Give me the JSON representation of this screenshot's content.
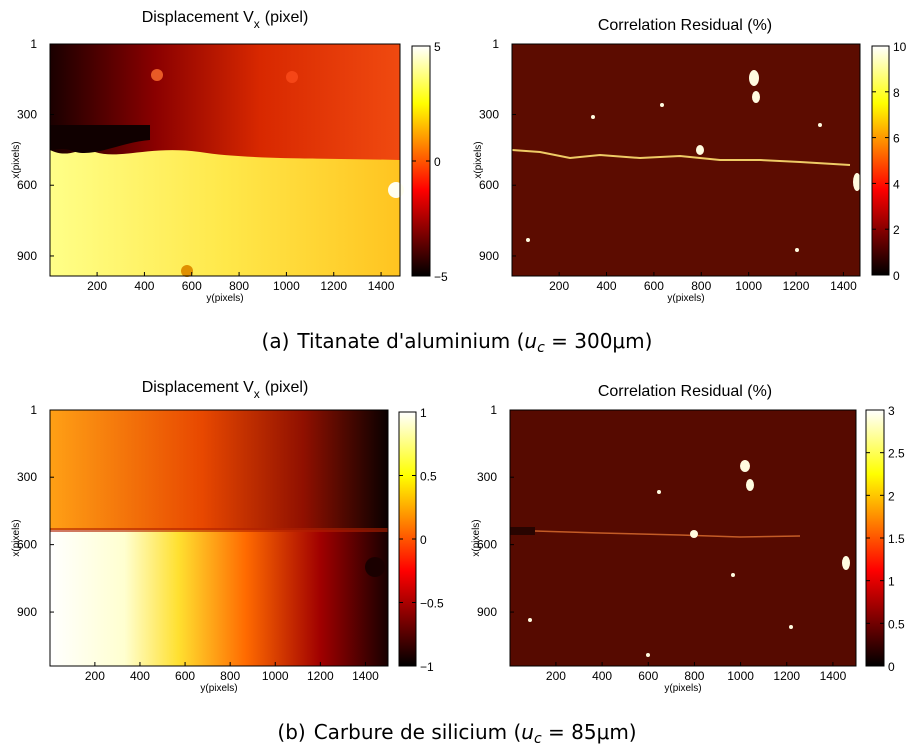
{
  "chart_data": [
    {
      "type": "heatmap",
      "title": "Displacement V",
      "title_subscript": "x",
      "title_suffix": "(pixel)",
      "xlabel": "y(pixels)",
      "ylabel": "x(pixels)",
      "xlim": [
        1,
        1480
      ],
      "ylim": [
        1,
        985
      ],
      "xticks": [
        200,
        400,
        600,
        800,
        1000,
        1200,
        1400
      ],
      "yticks": [
        1,
        300,
        600,
        900
      ],
      "colormap": "hot",
      "clim": [
        -5,
        5
      ],
      "cticks": [
        {
          "value": -5,
          "label": "−5"
        },
        0,
        5
      ]
    },
    {
      "type": "heatmap",
      "title": "Correlation Residual (%)",
      "xlabel": "y(pixels)",
      "ylabel": "x(pixels)",
      "xlim": [
        1,
        1470
      ],
      "ylim": [
        1,
        985
      ],
      "xticks": [
        200,
        400,
        600,
        800,
        1000,
        1200,
        1400
      ],
      "yticks": [
        1,
        300,
        600,
        900
      ],
      "colormap": "hot",
      "clim": [
        0,
        10
      ],
      "cticks": [
        0,
        2,
        4,
        6,
        8,
        10
      ]
    },
    {
      "type": "heatmap",
      "title": "Displacement V",
      "title_subscript": "x",
      "title_suffix": "(pixel)",
      "xlabel": "y(pixels)",
      "ylabel": "x(pixels)",
      "xlim": [
        1,
        1500
      ],
      "ylim": [
        1,
        1140
      ],
      "xticks": [
        200,
        400,
        600,
        800,
        1000,
        1200,
        1400
      ],
      "yticks": [
        1,
        300,
        600,
        900
      ],
      "colormap": "hot",
      "clim": [
        -1,
        1
      ],
      "cticks": [
        {
          "value": -1,
          "label": "−1"
        },
        {
          "value": -0.5,
          "label": "−0.5"
        },
        0,
        0.5,
        1
      ]
    },
    {
      "type": "heatmap",
      "title": "Correlation Residual (%)",
      "xlabel": "y(pixels)",
      "ylabel": "x(pixels)",
      "xlim": [
        1,
        1500
      ],
      "ylim": [
        1,
        1140
      ],
      "xticks": [
        200,
        400,
        600,
        800,
        1000,
        1200,
        1400
      ],
      "yticks": [
        1,
        300,
        600,
        900
      ],
      "colormap": "hot",
      "clim": [
        0,
        3
      ],
      "cticks": [
        0,
        0.5,
        1,
        1.5,
        2,
        2.5,
        3
      ]
    }
  ],
  "captions": [
    {
      "label": "(a)",
      "text": "Titanate d'aluminium (",
      "variable": "u",
      "subscript": "c",
      "rest": " = 300μm)"
    },
    {
      "label": "(b)",
      "text": "Carbure de silicium (",
      "variable": "u",
      "subscript": "c",
      "rest": " = 85μm)"
    }
  ]
}
